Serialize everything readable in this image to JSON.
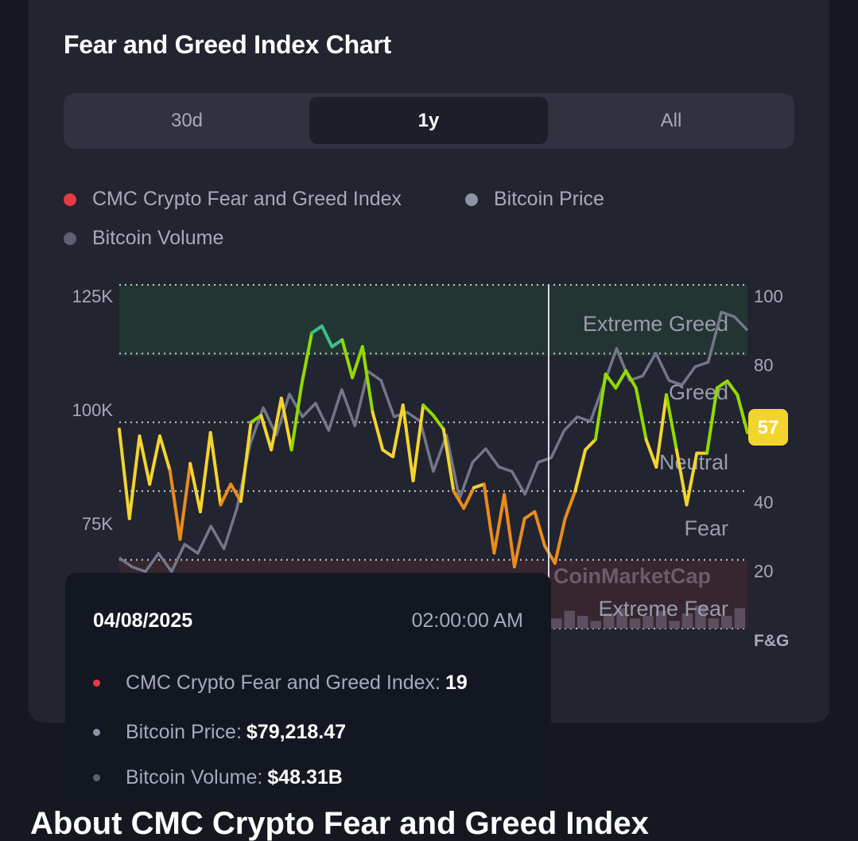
{
  "card": {
    "title": "Fear and Greed Index Chart"
  },
  "tabs": [
    {
      "label": "30d",
      "active": false
    },
    {
      "label": "1y",
      "active": true
    },
    {
      "label": "All",
      "active": false
    }
  ],
  "legend": [
    {
      "label": "CMC Crypto Fear and Greed Index",
      "color": "#ea3943"
    },
    {
      "label": "Bitcoin Price",
      "color": "#8e93a6"
    },
    {
      "label": "Bitcoin Volume",
      "color": "#5c6070"
    }
  ],
  "chart_data": {
    "type": "line",
    "title": "Fear and Greed Index Chart",
    "left_axis": {
      "label": "Bitcoin Price",
      "ticks": [
        "125K",
        "100K",
        "75K"
      ],
      "tick_values": [
        125,
        100,
        75
      ],
      "unit": "K USD"
    },
    "right_axis": {
      "label": "F&G",
      "ticks": [
        "100",
        "80",
        "40",
        "20"
      ],
      "tick_values": [
        100,
        80,
        40,
        20
      ],
      "ylim": [
        0,
        100
      ]
    },
    "zones": [
      {
        "label": "Extreme Greed",
        "range": [
          80,
          100
        ]
      },
      {
        "label": "Greed",
        "range": [
          60,
          80
        ]
      },
      {
        "label": "Neutral",
        "range": [
          40,
          60
        ]
      },
      {
        "label": "Fear",
        "range": [
          20,
          40
        ]
      },
      {
        "label": "Extreme Fear",
        "range": [
          0,
          20
        ]
      }
    ],
    "grid": true,
    "current_value": "57",
    "watermark": "CoinMarketCap",
    "series": [
      {
        "name": "CMC Crypto Fear and Greed Index",
        "values": [
          58,
          32,
          56,
          42,
          56,
          46,
          26,
          48,
          34,
          57,
          36,
          42,
          37,
          60,
          62,
          52,
          67,
          52,
          71,
          86,
          88,
          82,
          84,
          73,
          82,
          63,
          52,
          50,
          65,
          43,
          65,
          62,
          58,
          40,
          35,
          41,
          42,
          22,
          39,
          18,
          32,
          34,
          24,
          19,
          32,
          40,
          52,
          55,
          74,
          70,
          75,
          70,
          55,
          47,
          68,
          52,
          36,
          51,
          51,
          70,
          72,
          68,
          57
        ]
      },
      {
        "name": "Bitcoin Price",
        "unit": "K USD",
        "values": [
          65,
          63,
          62,
          66,
          62,
          68,
          66,
          72,
          67,
          76,
          90,
          98,
          92,
          101,
          96,
          99,
          93,
          102,
          94,
          106,
          104,
          96,
          97,
          95,
          84,
          92,
          78,
          86,
          89,
          85,
          84,
          79,
          86,
          87,
          93,
          96,
          95,
          103,
          111,
          104,
          105,
          110,
          104,
          103,
          107,
          108,
          119,
          118,
          115
        ]
      },
      {
        "name": "Bitcoin Volume",
        "values": [
          3,
          5,
          2,
          6,
          4,
          8,
          3,
          5,
          9,
          4,
          6,
          3,
          7,
          5,
          4,
          10,
          6,
          3,
          5,
          8,
          4,
          6,
          9,
          5,
          3,
          7,
          4,
          6,
          5,
          8,
          3,
          9,
          6,
          4,
          7,
          5,
          3,
          6,
          8,
          4,
          5,
          7,
          3,
          6,
          9,
          4,
          5,
          8
        ]
      }
    ]
  },
  "tooltip": {
    "date": "04/08/2025",
    "time": "02:00:00 AM",
    "rows": [
      {
        "label": "CMC Crypto Fear and Greed Index:",
        "value": "19",
        "color": "#ea3943"
      },
      {
        "label": "Bitcoin Price:",
        "value": "$79,218.47",
        "color": "#8e93a6"
      },
      {
        "label": "Bitcoin Volume:",
        "value": "$48.31B",
        "color": "#5c6070"
      }
    ]
  },
  "section_heading": "About CMC Crypto Fear and Greed Index"
}
